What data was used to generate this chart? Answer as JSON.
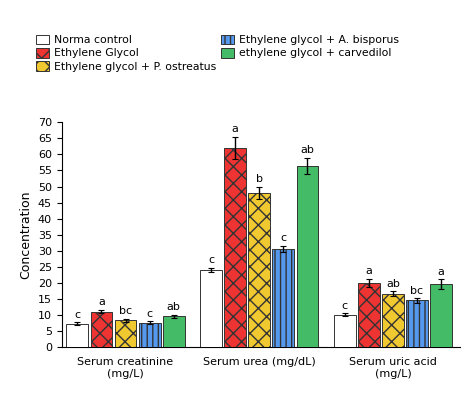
{
  "groups": [
    "Serum creatinine\n(mg/L)",
    "Serum urea (mg/dL)",
    "Serum uric acid\n(mg/L)"
  ],
  "series": [
    {
      "label": "Norma control",
      "color": "#ffffff",
      "edgecolor": "#333333",
      "hatch": "",
      "values": [
        7.2,
        24.0,
        10.0
      ],
      "errors": [
        0.5,
        0.7,
        0.5
      ],
      "letters": [
        "c",
        "c",
        "c"
      ]
    },
    {
      "label": "Ethylene Glycol",
      "color": "#ee3333",
      "edgecolor": "#333333",
      "hatch": "xx",
      "values": [
        11.0,
        62.0,
        20.0
      ],
      "errors": [
        0.6,
        3.5,
        1.2
      ],
      "letters": [
        "a",
        "a",
        "a"
      ]
    },
    {
      "label": "Ethylene glycol + P. ostreatus",
      "color": "#f0c830",
      "edgecolor": "#333333",
      "hatch": "xx",
      "values": [
        8.3,
        48.0,
        16.5
      ],
      "errors": [
        0.5,
        2.0,
        0.8
      ],
      "letters": [
        "bc",
        "b",
        "ab"
      ]
    },
    {
      "label": "Ethylene glycol + A. bisporus",
      "color": "#5599ee",
      "edgecolor": "#333333",
      "hatch": "|||",
      "values": [
        7.5,
        30.5,
        14.5
      ],
      "errors": [
        0.4,
        1.0,
        0.7
      ],
      "letters": [
        "c",
        "c",
        "bc"
      ]
    },
    {
      "label": "ethylene glycol + carvedilol",
      "color": "#44bb66",
      "edgecolor": "#333333",
      "hatch": "===",
      "values": [
        9.5,
        56.5,
        19.5
      ],
      "errors": [
        0.5,
        2.5,
        1.5
      ],
      "letters": [
        "ab",
        "ab",
        "a"
      ]
    }
  ],
  "ylim": [
    0,
    70
  ],
  "yticks": [
    0,
    5,
    10,
    15,
    20,
    25,
    30,
    35,
    40,
    45,
    50,
    55,
    60,
    65,
    70
  ],
  "ylabel": "Concentration",
  "bg_color": "#ffffff",
  "letter_fontsize": 8,
  "bar_width": 0.075,
  "group_centers": [
    0.27,
    0.73,
    1.19
  ],
  "xlim": [
    0.05,
    1.42
  ]
}
